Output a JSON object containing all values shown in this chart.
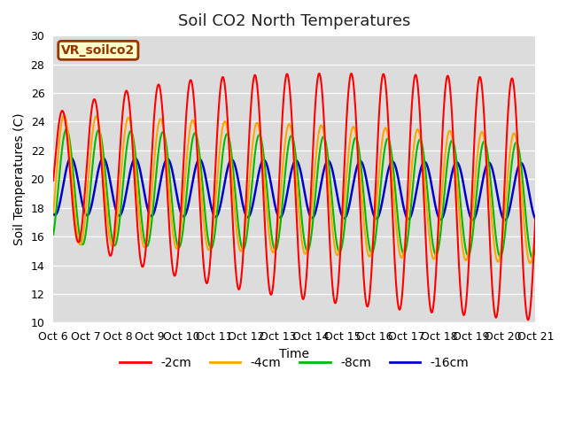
{
  "title": "Soil CO2 North Temperatures",
  "xlabel": "Time",
  "ylabel": "Soil Temperatures (C)",
  "ylim": [
    10,
    30
  ],
  "xlim": [
    0,
    15
  ],
  "x_tick_labels": [
    "Oct 6",
    "Oct 7",
    "Oct 8",
    "Oct 9",
    "Oct 10",
    "Oct 11",
    "Oct 12",
    "Oct 13",
    "Oct 14",
    "Oct 15",
    "Oct 16",
    "Oct 17",
    "Oct 18",
    "Oct 19",
    "Oct 20",
    "Oct 21"
  ],
  "legend_labels": [
    "-2cm",
    "-4cm",
    "-8cm",
    "-16cm"
  ],
  "legend_colors": [
    "#FF0000",
    "#FFA500",
    "#00BB00",
    "#0000CC"
  ],
  "label_box_text": "VR_soilco2",
  "label_box_bg": "#FFFFCC",
  "label_box_border": "#993300",
  "bg_color": "#DCDCDC",
  "title_fontsize": 13,
  "axis_fontsize": 10,
  "tick_fontsize": 9,
  "legend_fontsize": 10,
  "yticks": [
    10,
    12,
    14,
    16,
    18,
    20,
    22,
    24,
    26,
    28,
    30
  ]
}
